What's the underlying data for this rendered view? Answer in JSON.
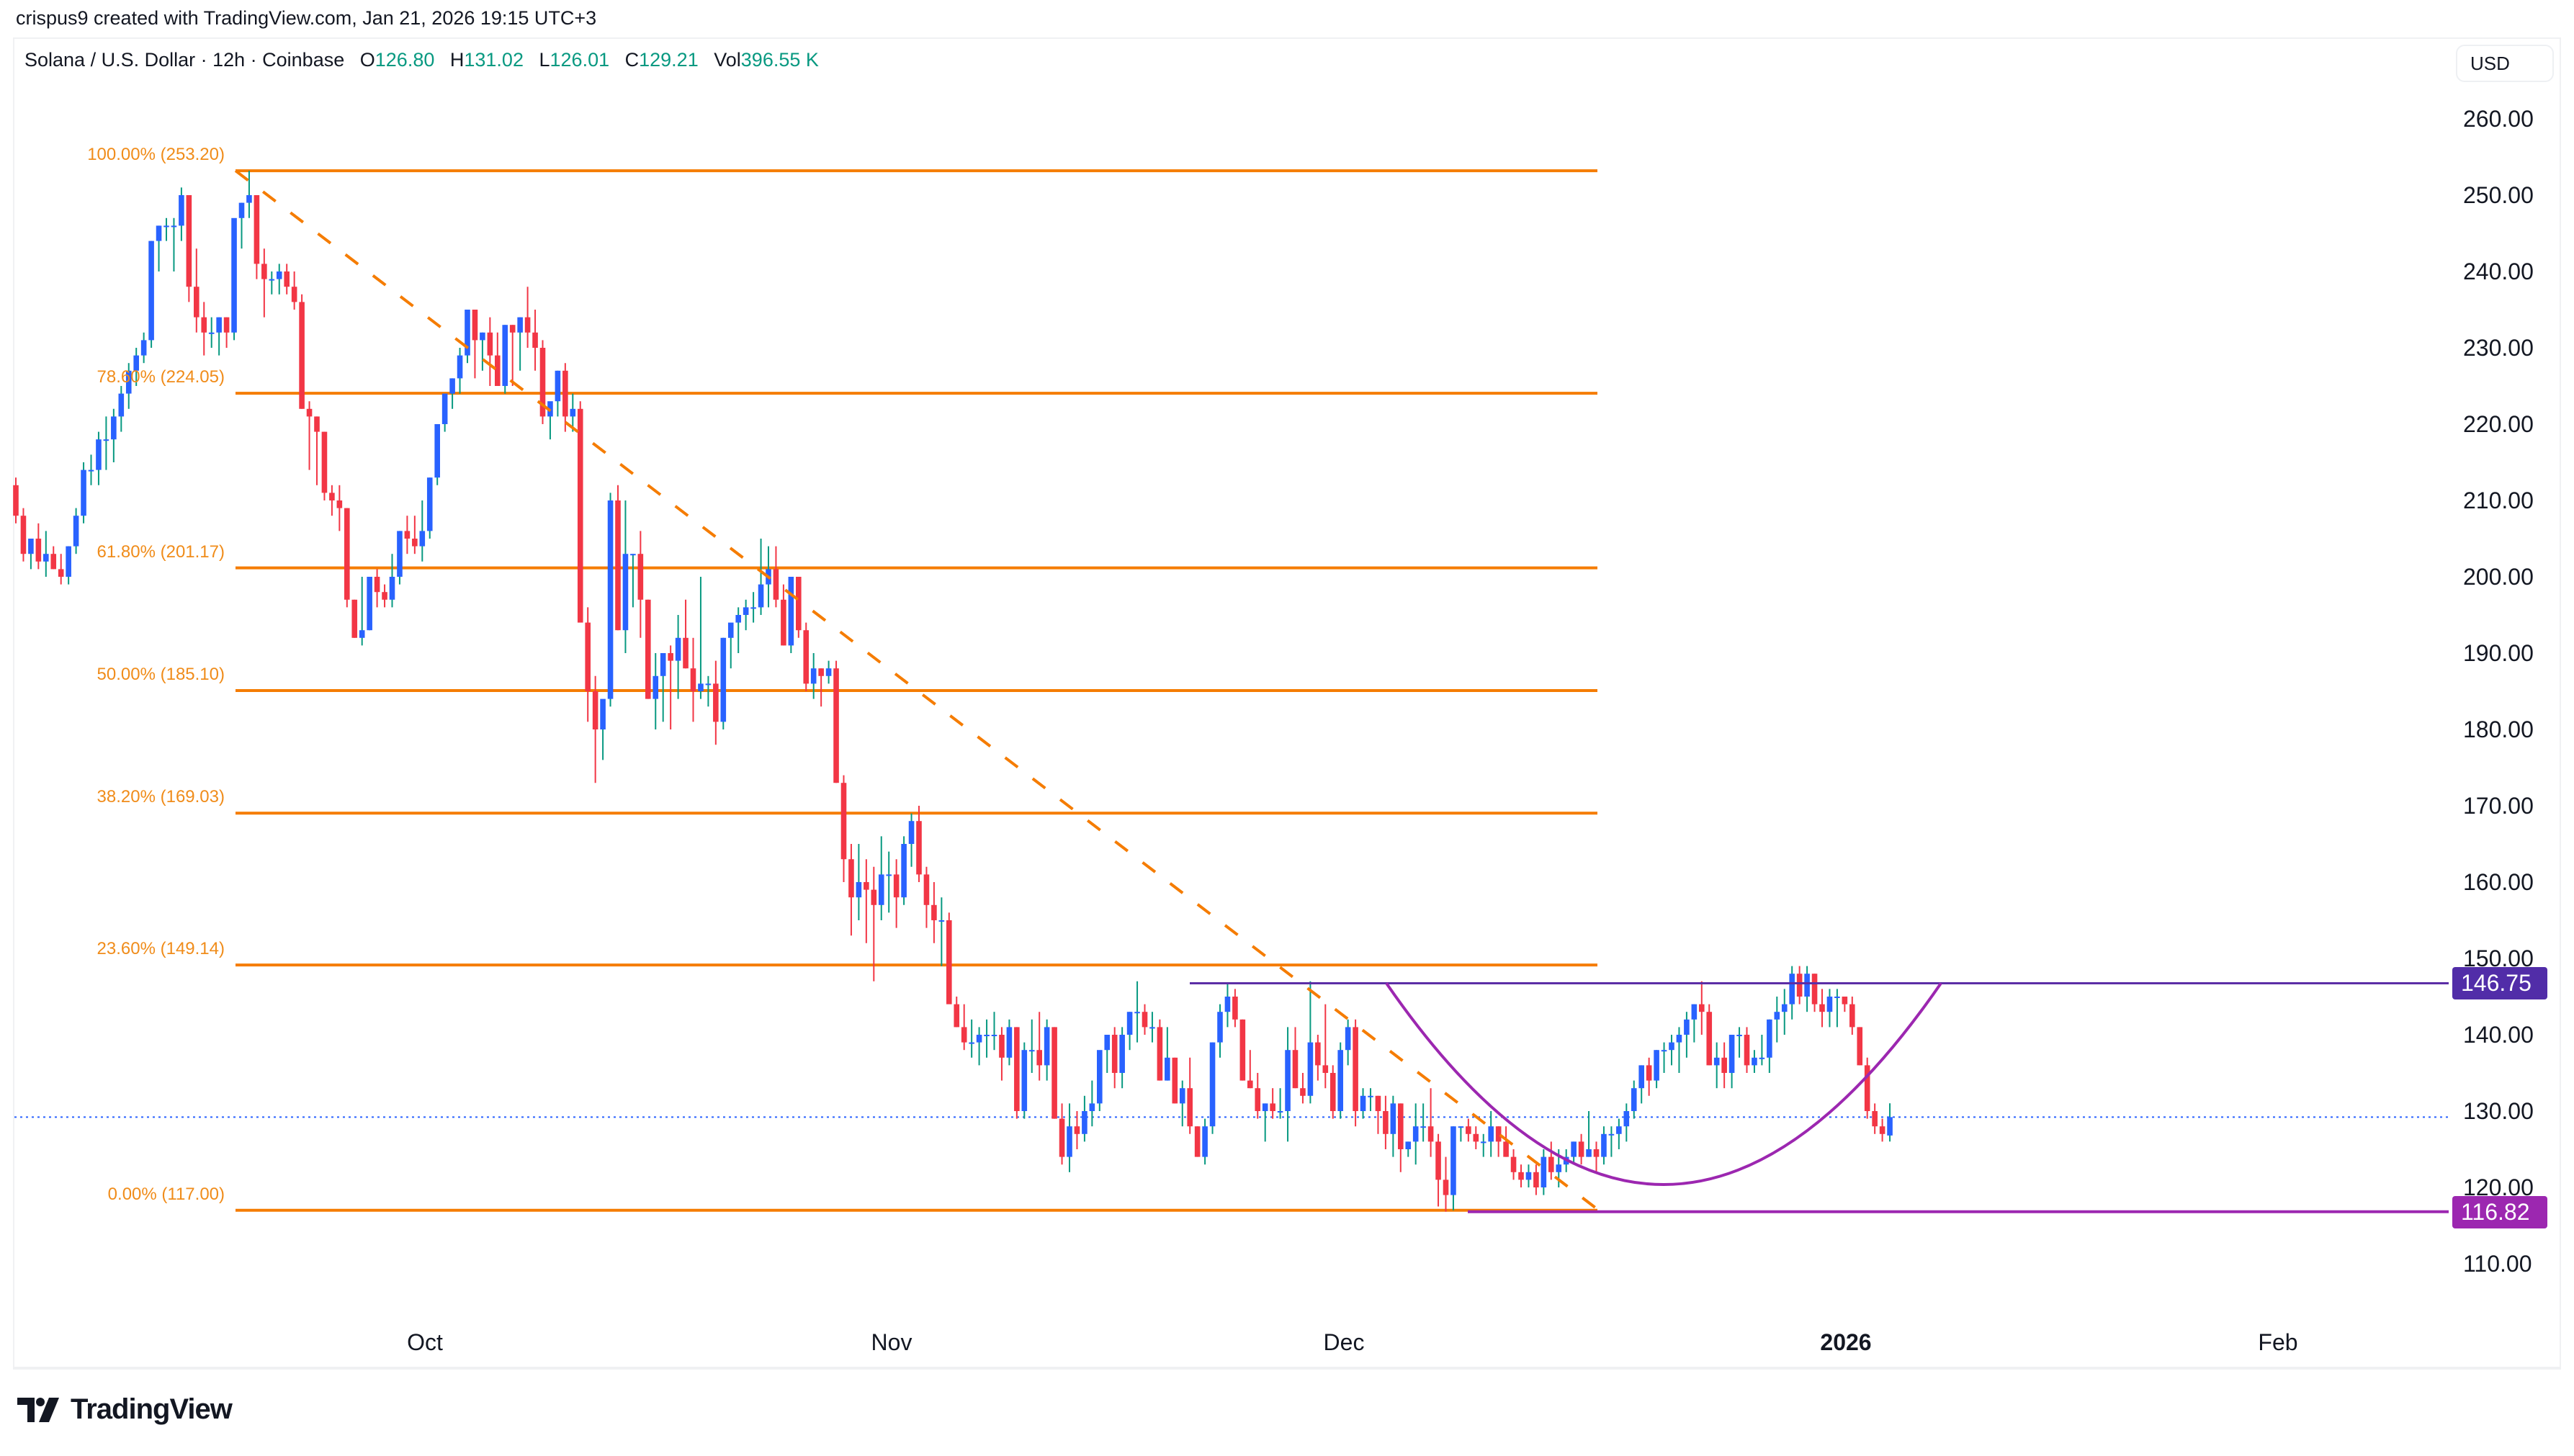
{
  "credit": "crispus9 created with TradingView.com, Jan 21, 2026 19:15 UTC+3",
  "legend": {
    "symbol": "Solana / U.S. Dollar · 12h · Coinbase",
    "open_label": "O",
    "open": "126.80",
    "high_label": "H",
    "high": "131.02",
    "low_label": "L",
    "low": "126.01",
    "close_label": "C",
    "close": "129.21",
    "vol_label": "Vol",
    "vol": "396.55 K"
  },
  "currency_button": "USD",
  "logo_text": "TradingView",
  "colors": {
    "up_body": "#2962ff",
    "up_wick": "#089981",
    "down": "#f23645",
    "fib": "#f57c00",
    "fib_text": "#f08c1a",
    "resistance": "#5b2ea6",
    "support": "#9c27b0",
    "arc": "#9c27b0",
    "price_line": "#2962ff"
  },
  "tags": {
    "resistance": {
      "label": "146.75",
      "color": "#512da8"
    },
    "support": {
      "label": "116.82",
      "color": "#9c27b0"
    }
  },
  "chart_data": {
    "type": "candlestick",
    "title": "Solana / U.S. Dollar · 12h · Coinbase",
    "xlabel": "",
    "ylabel": "USD",
    "ylim": [
      105,
      265
    ],
    "y_ticks": [
      "260.00",
      "250.00",
      "240.00",
      "230.00",
      "220.00",
      "210.00",
      "200.00",
      "190.00",
      "180.00",
      "170.00",
      "160.00",
      "150.00",
      "140.00",
      "130.00",
      "120.00",
      "110.00"
    ],
    "x_ticks": [
      {
        "label": "Oct",
        "x": 590,
        "bold": false
      },
      {
        "label": "Nov",
        "x": 1238,
        "bold": false
      },
      {
        "label": "Dec",
        "x": 1866,
        "bold": false
      },
      {
        "label": "2026",
        "x": 2563,
        "bold": true
      },
      {
        "label": "Feb",
        "x": 3163,
        "bold": false
      }
    ],
    "fibonacci": [
      {
        "level": "100.00%",
        "price": 253.2,
        "label": "100.00% (253.20)"
      },
      {
        "level": "78.60%",
        "price": 224.05,
        "label": "78.60% (224.05)"
      },
      {
        "level": "61.80%",
        "price": 201.17,
        "label": "61.80% (201.17)"
      },
      {
        "level": "50.00%",
        "price": 185.1,
        "label": "50.00% (185.10)"
      },
      {
        "level": "38.20%",
        "price": 169.03,
        "label": "38.20% (169.03)"
      },
      {
        "level": "23.60%",
        "price": 149.14,
        "label": "23.60% (149.14)"
      },
      {
        "level": "0.00%",
        "price": 117.0,
        "label": "0.00% (117.00)"
      }
    ],
    "horizontal_lines": [
      {
        "name": "resistance",
        "price": 146.75
      },
      {
        "name": "support",
        "price": 116.82
      }
    ],
    "current_price": 129.21,
    "annotations": [
      "Fibonacci retracement from 253.20 to 117.00",
      "Cup (rounded bottom) pattern",
      "Resistance 146.75",
      "Support 116.82"
    ],
    "first_candle_x": 22,
    "candle_spacing": 10.45,
    "ohlc": [
      [
        212,
        213,
        207,
        208
      ],
      [
        208,
        209,
        202,
        203
      ],
      [
        203,
        204,
        201,
        205
      ],
      [
        205,
        207,
        201,
        202
      ],
      [
        202,
        206,
        200,
        203
      ],
      [
        203,
        204,
        201,
        201
      ],
      [
        201,
        203,
        199,
        200
      ],
      [
        200,
        204,
        199,
        204
      ],
      [
        204,
        209,
        203,
        208
      ],
      [
        208,
        215,
        207,
        214
      ],
      [
        214,
        216,
        212,
        214
      ],
      [
        214,
        219,
        212,
        218
      ],
      [
        218,
        221,
        214,
        218
      ],
      [
        218,
        222,
        215,
        221
      ],
      [
        221,
        225,
        219,
        224
      ],
      [
        224,
        228,
        222,
        227
      ],
      [
        227,
        230,
        225,
        229
      ],
      [
        229,
        232,
        228,
        231
      ],
      [
        231,
        244,
        230,
        244
      ],
      [
        244,
        246,
        240,
        246
      ],
      [
        246,
        247,
        244,
        246
      ],
      [
        246,
        247,
        240,
        246
      ],
      [
        246,
        251,
        244,
        250
      ],
      [
        250,
        249,
        236,
        238
      ],
      [
        238,
        243,
        232,
        234
      ],
      [
        234,
        236,
        229,
        232
      ],
      [
        232,
        234,
        230,
        232
      ],
      [
        232,
        234,
        229,
        234
      ],
      [
        234,
        234,
        230,
        232
      ],
      [
        232,
        239,
        231,
        247
      ],
      [
        247,
        249,
        243,
        249
      ],
      [
        249,
        253.2,
        247,
        250
      ],
      [
        250,
        249,
        239,
        241
      ],
      [
        241,
        243,
        234,
        239
      ],
      [
        239,
        240,
        237,
        239
      ],
      [
        239,
        241,
        237,
        240
      ],
      [
        240,
        241,
        237,
        238
      ],
      [
        238,
        240,
        235,
        236
      ],
      [
        236,
        237,
        222,
        222
      ],
      [
        222,
        223,
        214,
        221
      ],
      [
        221,
        221,
        212,
        219
      ],
      [
        219,
        219,
        210,
        211
      ],
      [
        211,
        212,
        208,
        210
      ],
      [
        210,
        212,
        206,
        209
      ],
      [
        209,
        209,
        196,
        197
      ],
      [
        197,
        197,
        192,
        192
      ],
      [
        192,
        200,
        191,
        193
      ],
      [
        193,
        200,
        193,
        200
      ],
      [
        200,
        201,
        196,
        198
      ],
      [
        198,
        199,
        196,
        197
      ],
      [
        197,
        203,
        196,
        200
      ],
      [
        200,
        206,
        199,
        206
      ],
      [
        206,
        208,
        203,
        205
      ],
      [
        205,
        208,
        203,
        204
      ],
      [
        204,
        210,
        202,
        206
      ],
      [
        206,
        213,
        205,
        213
      ],
      [
        213,
        220,
        212,
        220
      ],
      [
        220,
        224,
        219,
        224
      ],
      [
        224,
        226,
        222,
        226
      ],
      [
        226,
        230,
        224,
        229
      ],
      [
        229,
        235,
        228,
        235
      ],
      [
        235,
        235,
        226,
        231
      ],
      [
        231,
        232,
        227,
        232
      ],
      [
        232,
        234,
        225,
        229
      ],
      [
        229,
        232,
        225,
        225
      ],
      [
        225,
        233,
        224,
        233
      ],
      [
        233,
        233,
        225,
        232
      ],
      [
        232,
        234,
        227,
        234
      ],
      [
        234,
        238,
        230,
        232
      ],
      [
        232,
        235,
        227,
        230
      ],
      [
        230,
        231,
        220,
        221
      ],
      [
        221,
        222,
        218,
        223
      ],
      [
        223,
        227,
        221,
        227
      ],
      [
        227,
        228,
        219,
        221
      ],
      [
        221,
        224,
        219,
        222
      ],
      [
        222,
        223,
        200,
        194
      ],
      [
        194,
        196,
        181,
        185
      ],
      [
        185,
        187,
        173,
        180
      ],
      [
        180,
        181,
        176,
        184
      ],
      [
        184,
        211,
        183,
        210
      ],
      [
        210,
        212,
        193,
        193
      ],
      [
        193,
        210,
        190,
        203
      ],
      [
        203,
        203,
        196,
        203
      ],
      [
        203,
        206,
        192,
        197
      ],
      [
        197,
        197,
        184,
        184
      ],
      [
        184,
        190,
        180,
        187
      ],
      [
        187,
        189,
        181,
        190
      ],
      [
        190,
        191,
        180,
        189
      ],
      [
        189,
        195,
        184,
        192
      ],
      [
        192,
        197,
        188,
        188
      ],
      [
        188,
        192,
        181,
        185
      ],
      [
        185,
        200,
        184,
        186
      ],
      [
        186,
        187,
        183,
        186
      ],
      [
        186,
        189,
        178,
        181
      ],
      [
        181,
        192,
        180,
        192
      ],
      [
        192,
        193,
        188,
        194
      ],
      [
        194,
        196,
        190,
        195
      ],
      [
        195,
        197,
        193,
        196
      ],
      [
        196,
        198,
        194,
        196
      ],
      [
        196,
        205,
        195,
        199
      ],
      [
        199,
        204,
        196,
        201
      ],
      [
        201,
        204,
        196,
        197
      ],
      [
        197,
        199,
        191,
        191
      ],
      [
        191,
        200,
        190,
        200
      ],
      [
        200,
        200,
        192,
        193
      ],
      [
        193,
        194,
        185,
        186
      ],
      [
        186,
        190,
        184,
        188
      ],
      [
        188,
        188,
        183,
        187
      ],
      [
        187,
        189,
        186,
        188
      ],
      [
        188,
        189,
        173,
        173
      ],
      [
        173,
        174,
        160,
        163
      ],
      [
        163,
        165,
        153,
        158
      ],
      [
        158,
        165,
        155,
        160
      ],
      [
        160,
        163,
        152,
        159
      ],
      [
        159,
        162,
        147,
        157
      ],
      [
        157,
        166,
        155,
        161
      ],
      [
        161,
        164,
        156,
        161
      ],
      [
        161,
        163,
        154,
        158
      ],
      [
        158,
        166,
        157,
        165
      ],
      [
        165,
        169,
        162,
        168
      ],
      [
        168,
        170,
        160,
        161
      ],
      [
        161,
        162,
        154,
        157
      ],
      [
        157,
        160,
        152,
        155
      ],
      [
        155,
        158,
        149,
        155
      ],
      [
        155,
        156,
        146,
        144
      ],
      [
        144,
        145,
        141,
        141
      ],
      [
        141,
        144,
        138,
        139
      ],
      [
        139,
        142,
        137,
        139
      ],
      [
        139,
        141,
        136,
        140
      ],
      [
        140,
        142,
        137,
        140
      ],
      [
        140,
        143,
        138,
        140
      ],
      [
        140,
        141,
        134,
        137
      ],
      [
        137,
        142,
        136,
        141
      ],
      [
        141,
        141,
        129,
        130
      ],
      [
        130,
        139,
        129,
        138
      ],
      [
        138,
        142,
        135,
        138
      ],
      [
        138,
        143,
        134,
        136
      ],
      [
        136,
        142,
        134,
        141
      ],
      [
        141,
        141,
        129,
        129
      ],
      [
        129,
        131,
        123,
        124
      ],
      [
        124,
        131,
        122,
        128
      ],
      [
        128,
        130,
        125,
        127
      ],
      [
        127,
        132,
        126,
        130
      ],
      [
        130,
        134,
        128,
        131
      ],
      [
        131,
        137,
        130,
        138
      ],
      [
        138,
        140,
        135,
        140
      ],
      [
        140,
        141,
        133,
        135
      ],
      [
        135,
        141,
        133,
        140
      ],
      [
        140,
        143,
        138,
        143
      ],
      [
        143,
        147,
        139,
        143
      ],
      [
        143,
        144,
        140,
        141
      ],
      [
        141,
        143,
        139,
        141
      ],
      [
        141,
        142,
        134,
        134
      ],
      [
        134,
        141,
        134,
        137
      ],
      [
        137,
        137,
        131,
        131
      ],
      [
        131,
        134,
        128,
        133
      ],
      [
        133,
        137,
        127,
        128
      ],
      [
        128,
        128,
        124,
        124
      ],
      [
        124,
        129,
        123,
        128
      ],
      [
        128,
        139,
        127,
        139
      ],
      [
        139,
        144,
        137,
        143
      ],
      [
        143,
        146.75,
        141,
        145
      ],
      [
        145,
        146,
        141,
        142
      ],
      [
        142,
        142,
        134,
        134
      ],
      [
        134,
        138,
        133,
        133
      ],
      [
        133,
        135,
        129,
        130
      ],
      [
        130,
        131,
        126,
        131
      ],
      [
        131,
        133,
        129,
        130
      ],
      [
        130,
        133,
        129,
        130
      ],
      [
        130,
        141,
        126,
        138
      ],
      [
        138,
        141,
        133,
        133
      ],
      [
        133,
        135,
        131,
        132
      ],
      [
        132,
        147,
        131,
        139
      ],
      [
        139,
        140,
        134,
        136
      ],
      [
        136,
        144,
        133,
        135
      ],
      [
        135,
        136,
        129,
        130
      ],
      [
        130,
        139,
        129,
        138
      ],
      [
        138,
        142,
        136,
        141
      ],
      [
        141,
        142,
        128,
        130
      ],
      [
        130,
        133,
        129,
        132
      ],
      [
        132,
        133,
        130,
        132
      ],
      [
        132,
        132,
        127,
        130
      ],
      [
        130,
        132,
        125,
        127
      ],
      [
        127,
        132,
        124,
        131
      ],
      [
        131,
        131,
        122,
        125
      ],
      [
        125,
        126,
        124,
        126
      ],
      [
        126,
        131,
        123,
        128
      ],
      [
        128,
        131,
        126,
        128
      ],
      [
        128,
        133,
        124,
        126
      ],
      [
        126,
        127,
        117.5,
        121
      ],
      [
        121,
        124,
        116.82,
        119
      ],
      [
        119,
        128,
        117,
        128
      ],
      [
        128,
        128,
        126,
        128
      ],
      [
        128,
        129,
        126,
        127
      ],
      [
        127,
        128,
        125,
        126
      ],
      [
        126,
        127,
        124,
        126
      ],
      [
        126,
        130,
        124,
        128
      ],
      [
        128,
        128,
        124,
        126
      ],
      [
        126,
        128,
        124,
        124
      ],
      [
        124,
        125,
        121,
        122
      ],
      [
        122,
        123,
        120,
        121
      ],
      [
        121,
        123,
        120,
        122
      ],
      [
        122,
        123,
        119,
        120
      ],
      [
        120,
        125,
        119,
        124
      ],
      [
        124,
        126,
        121,
        122
      ],
      [
        122,
        125,
        120,
        123
      ],
      [
        123,
        125,
        122,
        124
      ],
      [
        124,
        126,
        123,
        126
      ],
      [
        126,
        127,
        123,
        124
      ],
      [
        124,
        130,
        124,
        125
      ],
      [
        125,
        126,
        122,
        124
      ],
      [
        124,
        128,
        123,
        127
      ],
      [
        127,
        128,
        124,
        127
      ],
      [
        127,
        129,
        125,
        128
      ],
      [
        128,
        131,
        126,
        130
      ],
      [
        130,
        134,
        129,
        133
      ],
      [
        133,
        136,
        131,
        136
      ],
      [
        136,
        137,
        132,
        134
      ],
      [
        134,
        138,
        133,
        138
      ],
      [
        138,
        139,
        135,
        138
      ],
      [
        138,
        140,
        136,
        139
      ],
      [
        139,
        141,
        135,
        140
      ],
      [
        140,
        143,
        137,
        142
      ],
      [
        142,
        144,
        139,
        144
      ],
      [
        144,
        147,
        140,
        143
      ],
      [
        143,
        144,
        136,
        136
      ],
      [
        136,
        139,
        133,
        137
      ],
      [
        137,
        139,
        133,
        135
      ],
      [
        135,
        140,
        133,
        140
      ],
      [
        140,
        141,
        137,
        140
      ],
      [
        140,
        141,
        135,
        136
      ],
      [
        136,
        138,
        135,
        137
      ],
      [
        137,
        140,
        136,
        137
      ],
      [
        137,
        142,
        135,
        142
      ],
      [
        142,
        145,
        139,
        143
      ],
      [
        143,
        146,
        140,
        144
      ],
      [
        144,
        149,
        142,
        148
      ],
      [
        148,
        149,
        144,
        145
      ],
      [
        145,
        149,
        143,
        148
      ],
      [
        148,
        148,
        143,
        144
      ],
      [
        144,
        146,
        141,
        143
      ],
      [
        143,
        146,
        141,
        145
      ],
      [
        145,
        146,
        141,
        145
      ],
      [
        145,
        145,
        143,
        144
      ],
      [
        144,
        145,
        140,
        141
      ],
      [
        141,
        141,
        136,
        136
      ],
      [
        136,
        137,
        129,
        130
      ],
      [
        130,
        131,
        127,
        128
      ],
      [
        128,
        129,
        126,
        127
      ],
      [
        126.8,
        131.02,
        126.01,
        129.21
      ]
    ]
  }
}
